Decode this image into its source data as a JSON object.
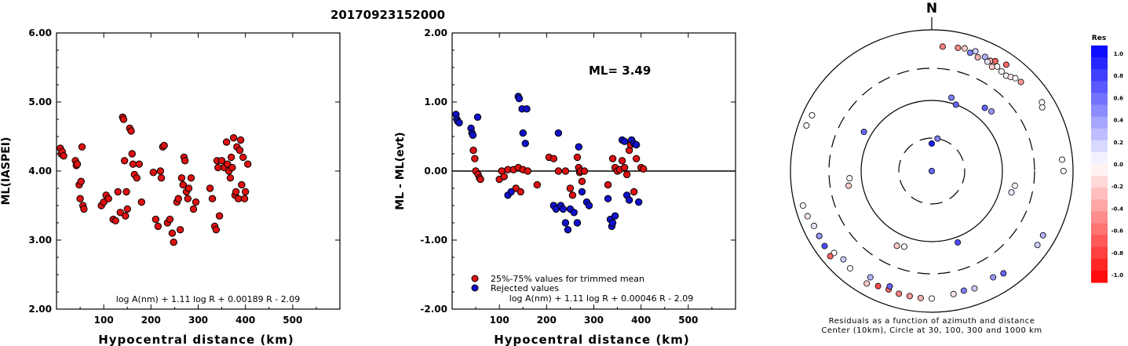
{
  "figure_title": "20170923152000",
  "chart_data": [
    {
      "type": "scatter",
      "title": "",
      "xlabel": "Hypocentral distance (km)",
      "ylabel": "ML(IASPEI)",
      "xlim": [
        0,
        600
      ],
      "ylim": [
        2.0,
        6.0
      ],
      "xticks": [
        "100",
        "200",
        "300",
        "400",
        "500"
      ],
      "yticks": [
        "2.00",
        "3.00",
        "4.00",
        "5.00",
        "6.00"
      ],
      "formula": "log A(nm) + 1.11 log R + 0.00189 R - 2.09",
      "series": [
        {
          "color": "#dd1111",
          "points": [
            [
              8,
              4.33
            ],
            [
              10,
              4.25
            ],
            [
              12,
              4.28
            ],
            [
              15,
              4.22
            ],
            [
              40,
              4.15
            ],
            [
              42,
              4.08
            ],
            [
              44,
              4.1
            ],
            [
              48,
              3.8
            ],
            [
              50,
              3.6
            ],
            [
              52,
              3.85
            ],
            [
              54,
              4.35
            ],
            [
              56,
              3.5
            ],
            [
              58,
              3.45
            ],
            [
              95,
              3.5
            ],
            [
              100,
              3.55
            ],
            [
              105,
              3.65
            ],
            [
              110,
              3.6
            ],
            [
              120,
              3.3
            ],
            [
              125,
              3.28
            ],
            [
              130,
              3.7
            ],
            [
              135,
              3.4
            ],
            [
              140,
              4.78
            ],
            [
              142,
              4.75
            ],
            [
              144,
              4.15
            ],
            [
              146,
              3.35
            ],
            [
              148,
              3.7
            ],
            [
              150,
              3.45
            ],
            [
              155,
              4.62
            ],
            [
              158,
              4.58
            ],
            [
              160,
              4.25
            ],
            [
              162,
              4.1
            ],
            [
              165,
              3.95
            ],
            [
              170,
              3.9
            ],
            [
              175,
              4.1
            ],
            [
              180,
              3.55
            ],
            [
              205,
              3.98
            ],
            [
              210,
              3.3
            ],
            [
              215,
              3.2
            ],
            [
              220,
              4.0
            ],
            [
              222,
              3.9
            ],
            [
              225,
              4.35
            ],
            [
              228,
              4.37
            ],
            [
              235,
              3.25
            ],
            [
              240,
              3.3
            ],
            [
              245,
              3.1
            ],
            [
              248,
              2.97
            ],
            [
              255,
              3.55
            ],
            [
              258,
              3.6
            ],
            [
              262,
              3.15
            ],
            [
              265,
              3.9
            ],
            [
              268,
              3.8
            ],
            [
              270,
              4.2
            ],
            [
              272,
              4.15
            ],
            [
              275,
              3.7
            ],
            [
              278,
              3.6
            ],
            [
              280,
              3.75
            ],
            [
              285,
              3.9
            ],
            [
              290,
              3.45
            ],
            [
              295,
              3.55
            ],
            [
              325,
              3.75
            ],
            [
              330,
              3.6
            ],
            [
              335,
              3.2
            ],
            [
              338,
              3.15
            ],
            [
              340,
              4.15
            ],
            [
              342,
              4.05
            ],
            [
              345,
              3.35
            ],
            [
              350,
              4.15
            ],
            [
              355,
              4.05
            ],
            [
              360,
              4.42
            ],
            [
              362,
              4.1
            ],
            [
              365,
              4.0
            ],
            [
              368,
              3.9
            ],
            [
              370,
              4.2
            ],
            [
              372,
              4.05
            ],
            [
              375,
              4.48
            ],
            [
              378,
              3.65
            ],
            [
              380,
              3.7
            ],
            [
              382,
              4.35
            ],
            [
              385,
              3.6
            ],
            [
              388,
              4.3
            ],
            [
              390,
              4.45
            ],
            [
              392,
              3.8
            ],
            [
              395,
              4.2
            ],
            [
              398,
              3.6
            ],
            [
              400,
              3.7
            ],
            [
              405,
              4.1
            ]
          ]
        }
      ]
    },
    {
      "type": "scatter",
      "title": "",
      "xlabel": "Hypocentral distance (km)",
      "ylabel": "ML - ML(evt)",
      "xlim": [
        0,
        600
      ],
      "ylim": [
        -2.0,
        2.0
      ],
      "xticks": [
        "100",
        "200",
        "300",
        "400",
        "500"
      ],
      "yticks": [
        "-2.00",
        "-1.00",
        "0.00",
        "1.00",
        "2.00"
      ],
      "annotation": "ML= 3.49",
      "formula": "log A(nm) + 1.11 log R + 0.00046 R - 2.09",
      "legend": [
        {
          "label": "25%-75% values for trimmed mean",
          "color": "#dd1111"
        },
        {
          "label": "Rejected values",
          "color": "#1111cc"
        }
      ],
      "series": [
        {
          "name": "25%-75% values for trimmed mean",
          "color": "#dd1111",
          "points": [
            [
              45,
              0.3
            ],
            [
              48,
              0.18
            ],
            [
              50,
              0.0
            ],
            [
              55,
              -0.05
            ],
            [
              58,
              -0.1
            ],
            [
              60,
              -0.12
            ],
            [
              100,
              -0.12
            ],
            [
              105,
              0.0
            ],
            [
              110,
              -0.08
            ],
            [
              118,
              0.02
            ],
            [
              130,
              0.02
            ],
            [
              135,
              -0.25
            ],
            [
              140,
              0.05
            ],
            [
              145,
              -0.3
            ],
            [
              150,
              0.02
            ],
            [
              160,
              0.0
            ],
            [
              180,
              -0.2
            ],
            [
              205,
              0.2
            ],
            [
              215,
              0.18
            ],
            [
              225,
              0.0
            ],
            [
              240,
              0.0
            ],
            [
              250,
              -0.25
            ],
            [
              255,
              -0.35
            ],
            [
              265,
              0.2
            ],
            [
              268,
              0.05
            ],
            [
              270,
              -0.02
            ],
            [
              272,
              0.0
            ],
            [
              275,
              -0.15
            ],
            [
              280,
              0.0
            ],
            [
              330,
              -0.2
            ],
            [
              340,
              0.18
            ],
            [
              345,
              0.05
            ],
            [
              350,
              0.0
            ],
            [
              355,
              0.02
            ],
            [
              360,
              0.15
            ],
            [
              365,
              0.05
            ],
            [
              370,
              -0.05
            ],
            [
              375,
              0.3
            ],
            [
              378,
              0.38
            ],
            [
              385,
              -0.3
            ],
            [
              390,
              0.18
            ],
            [
              400,
              0.05
            ],
            [
              405,
              0.03
            ]
          ]
        },
        {
          "name": "Rejected values",
          "color": "#1111cc",
          "points": [
            [
              8,
              0.82
            ],
            [
              10,
              0.75
            ],
            [
              12,
              0.72
            ],
            [
              15,
              0.7
            ],
            [
              40,
              0.62
            ],
            [
              42,
              0.55
            ],
            [
              44,
              0.52
            ],
            [
              54,
              0.78
            ],
            [
              118,
              -0.35
            ],
            [
              125,
              -0.3
            ],
            [
              140,
              1.08
            ],
            [
              142,
              1.05
            ],
            [
              148,
              0.9
            ],
            [
              150,
              0.55
            ],
            [
              155,
              0.4
            ],
            [
              158,
              0.9
            ],
            [
              215,
              -0.5
            ],
            [
              220,
              -0.55
            ],
            [
              225,
              0.55
            ],
            [
              230,
              -0.5
            ],
            [
              235,
              -0.55
            ],
            [
              240,
              -0.75
            ],
            [
              245,
              -0.85
            ],
            [
              250,
              -0.55
            ],
            [
              258,
              -0.6
            ],
            [
              265,
              -0.75
            ],
            [
              268,
              0.35
            ],
            [
              275,
              -0.3
            ],
            [
              285,
              -0.45
            ],
            [
              290,
              -0.5
            ],
            [
              330,
              -0.4
            ],
            [
              335,
              -0.7
            ],
            [
              338,
              -0.8
            ],
            [
              340,
              -0.75
            ],
            [
              345,
              -0.65
            ],
            [
              360,
              0.45
            ],
            [
              365,
              0.43
            ],
            [
              370,
              -0.35
            ],
            [
              375,
              -0.42
            ],
            [
              380,
              0.45
            ],
            [
              385,
              0.4
            ],
            [
              390,
              0.38
            ],
            [
              395,
              -0.45
            ]
          ]
        }
      ]
    },
    {
      "type": "polar-scatter",
      "title": "N",
      "caption_line1": "Residuals as a function of azimuth and distance",
      "caption_line2": "Center (10km), Circle at 30, 100, 300 and 1000 km",
      "colorbar": {
        "title": "Res",
        "range": [
          -1.0,
          1.0
        ],
        "tick_labels": [
          "1.0",
          "0.8",
          "0.6",
          "0.4",
          "0.2",
          "0.0",
          "-0.2",
          "-0.4",
          "-0.6",
          "-0.8",
          "-1.0"
        ]
      },
      "points": [
        [
          5,
          600,
          -0.5
        ],
        [
          12,
          620,
          -0.45
        ],
        [
          15,
          640,
          -0.2
        ],
        [
          20,
          650,
          0.2
        ],
        [
          25,
          620,
          0.3
        ],
        [
          28,
          600,
          -0.3
        ],
        [
          30,
          640,
          -0.6
        ],
        [
          35,
          700,
          -0.6
        ],
        [
          27,
          560,
          0.1
        ],
        [
          32,
          570,
          0.0
        ],
        [
          30,
          520,
          -0.2
        ],
        [
          35,
          540,
          0.0
        ],
        [
          38,
          530,
          0.0
        ],
        [
          40,
          560,
          -0.1
        ],
        [
          22,
          560,
          -0.3
        ],
        [
          18,
          590,
          0.5
        ],
        [
          42,
          600,
          0.0
        ],
        [
          45,
          620,
          -0.4
        ],
        [
          60,
          650,
          0.0
        ],
        [
          58,
          700,
          0.0
        ],
        [
          85,
          720,
          0.0
        ],
        [
          90,
          740,
          0.0
        ],
        [
          120,
          670,
          0.3
        ],
        [
          125,
          680,
          0.2
        ],
        [
          145,
          600,
          0.6
        ],
        [
          150,
          560,
          0.4
        ],
        [
          160,
          600,
          0.2
        ],
        [
          165,
          580,
          0.5
        ],
        [
          170,
          600,
          -0.1
        ],
        [
          180,
          650,
          0.0
        ],
        [
          185,
          650,
          -0.3
        ],
        [
          190,
          640,
          -0.4
        ],
        [
          195,
          640,
          -0.5
        ],
        [
          200,
          620,
          -0.6
        ],
        [
          205,
          640,
          -0.7
        ],
        [
          210,
          700,
          -0.2
        ],
        [
          220,
          640,
          0.0
        ],
        [
          230,
          650,
          0.0
        ],
        [
          240,
          700,
          0.2
        ],
        [
          245,
          700,
          0.1
        ],
        [
          250,
          750,
          -0.1
        ],
        [
          255,
          780,
          0.0
        ],
        [
          200,
          560,
          0.6
        ],
        [
          210,
          560,
          0.3
        ],
        [
          225,
          600,
          0.2
        ],
        [
          290,
          780,
          0.0
        ],
        [
          295,
          750,
          0.0
        ],
        [
          230,
          760,
          -0.6
        ],
        [
          235,
          720,
          0.7
        ],
        [
          240,
          700,
          0.4
        ],
        [
          15,
          120,
          0.5
        ],
        [
          20,
          100,
          0.6
        ],
        [
          45,
          160,
          0.4
        ],
        [
          40,
          150,
          0.6
        ],
        [
          100,
          160,
          0.0
        ],
        [
          105,
          150,
          0.1
        ],
        [
          160,
          120,
          0.7
        ],
        [
          200,
          140,
          0.0
        ],
        [
          205,
          150,
          -0.2
        ],
        [
          260,
          160,
          -0.2
        ],
        [
          265,
          150,
          0.0
        ],
        [
          300,
          130,
          0.6
        ],
        [
          0,
          25,
          0.9
        ],
        [
          10,
          30,
          0.5
        ],
        [
          180,
          10,
          0.6
        ]
      ]
    }
  ]
}
